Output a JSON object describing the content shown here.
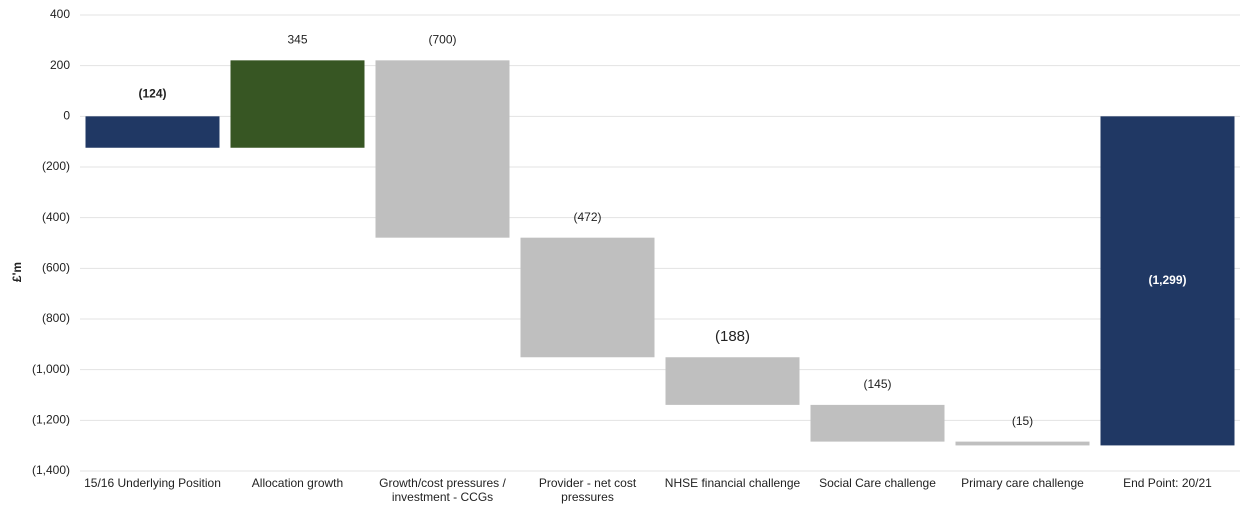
{
  "chart_data": {
    "type": "waterfall",
    "ylabel": "£'m",
    "categories": [
      "15/16 Underlying Position",
      "Allocation growth",
      "Growth/cost pressures / investment - CCGs",
      "Provider - net cost pressures",
      "NHSE financial challenge",
      "Social Care challenge",
      "Primary care challenge",
      "End Point: 20/21"
    ],
    "values": [
      -124,
      345,
      -700,
      -472,
      -188,
      -145,
      -15,
      -1299
    ],
    "value_labels": [
      "(124)",
      "345",
      "(700)",
      "(472)",
      "(188)",
      "(145)",
      "(15)",
      "(1,299)"
    ],
    "colors": [
      "#203864",
      "#375623",
      "#bfbfbf",
      "#bfbfbf",
      "#bfbfbf",
      "#bfbfbf",
      "#bfbfbf",
      "#203864"
    ],
    "ylim": [
      -1400,
      400
    ],
    "yticks": [
      400,
      200,
      0,
      {
        "value": -200,
        "label": "(200)"
      },
      {
        "value": -400,
        "label": "(400)"
      },
      {
        "value": -600,
        "label": "(600)"
      },
      {
        "value": -800,
        "label": "(800)"
      },
      {
        "value": -1000,
        "label": "(1,000)"
      },
      {
        "value": -1200,
        "label": "(1,200)"
      },
      {
        "value": -1400,
        "label": "(1,400)"
      }
    ],
    "grid": true
  }
}
